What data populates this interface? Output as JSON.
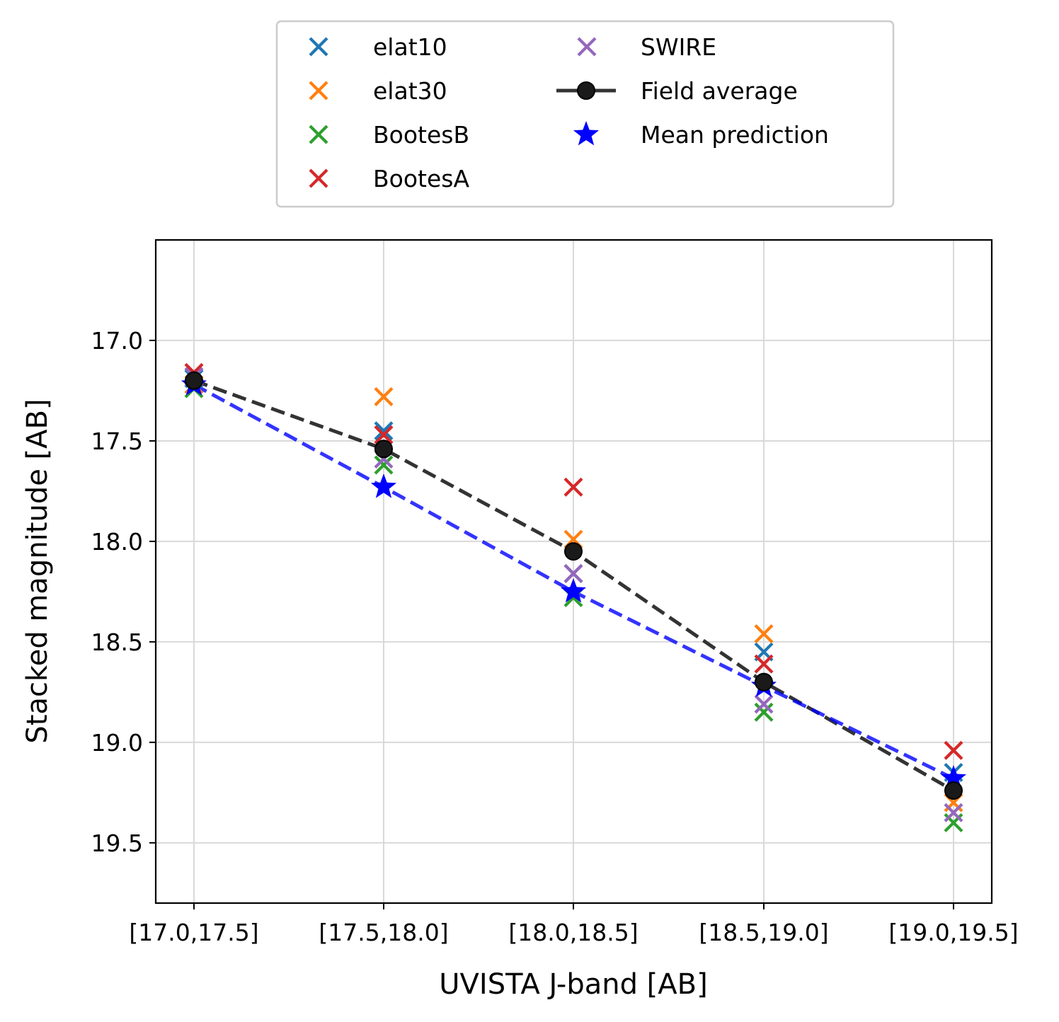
{
  "chart_data": {
    "type": "scatter",
    "title": "",
    "xlabel": "UVISTA J-band [AB]",
    "ylabel": "Stacked magnitude [AB]",
    "categories": [
      "[17.0,17.5]",
      "[17.5,18.0]",
      "[18.0,18.5]",
      "[18.5,19.0]",
      "[19.0,19.5]"
    ],
    "ylim": [
      19.8,
      16.5
    ],
    "y_inverted": true,
    "yticks": [
      17.0,
      17.5,
      18.0,
      18.5,
      19.0,
      19.5
    ],
    "ytick_labels": [
      "17.0",
      "17.5",
      "18.0",
      "18.5",
      "19.0",
      "19.5"
    ],
    "grid": true,
    "legend": {
      "placement": "above plot, centered, 2 columns"
    },
    "series": [
      {
        "name": "elat10",
        "marker": "x",
        "color": "#1f77b4",
        "values": [
          17.19,
          17.45,
          18.16,
          18.55,
          19.15
        ]
      },
      {
        "name": "elat30",
        "marker": "x",
        "color": "#ff7f0e",
        "values": [
          17.22,
          17.28,
          17.99,
          18.46,
          19.3
        ]
      },
      {
        "name": "BootesB",
        "marker": "x",
        "color": "#2ca02c",
        "values": [
          17.24,
          17.62,
          18.28,
          18.85,
          19.4
        ]
      },
      {
        "name": "BootesA",
        "marker": "x",
        "color": "#d62728",
        "values": [
          17.16,
          17.47,
          17.73,
          18.61,
          19.04
        ]
      },
      {
        "name": "SWIRE",
        "marker": "x",
        "color": "#9467bd",
        "values": [
          17.18,
          17.59,
          18.16,
          18.81,
          19.35
        ]
      },
      {
        "name": "Field average",
        "marker": "o",
        "line": "dashed",
        "color": "#333333",
        "values": [
          17.2,
          17.54,
          18.05,
          18.7,
          19.24
        ]
      },
      {
        "name": "Mean prediction",
        "marker": "*",
        "line": "dashed",
        "color": "#0000ff",
        "values": [
          17.22,
          17.73,
          18.25,
          18.72,
          19.18
        ]
      }
    ]
  }
}
